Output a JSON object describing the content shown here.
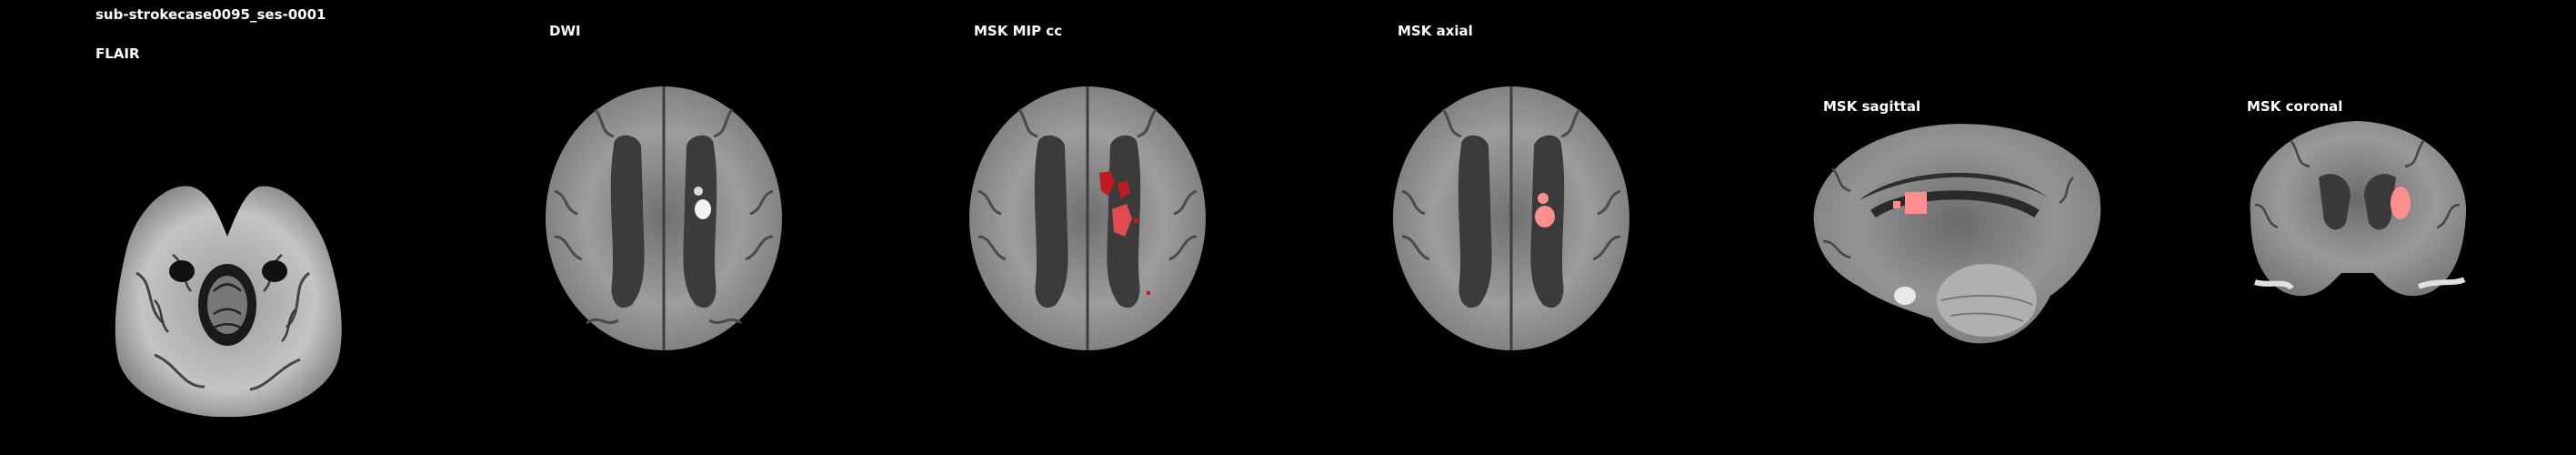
{
  "subject": {
    "id": "sub-strokecase0095_ses-0001"
  },
  "panels": [
    {
      "key": "flair",
      "title": "FLAIR"
    },
    {
      "key": "dwi",
      "title": "DWI"
    },
    {
      "key": "mip",
      "title": "MSK MIP cc"
    },
    {
      "key": "axial",
      "title": "MSK axial"
    },
    {
      "key": "sagittal",
      "title": "MSK sagittal"
    },
    {
      "key": "coronal",
      "title": "MSK coronal"
    }
  ],
  "colors": {
    "background": "#000000",
    "label": "#ffffff",
    "mask": "#e0202a",
    "mask_overlay": "#ff8f8f"
  }
}
